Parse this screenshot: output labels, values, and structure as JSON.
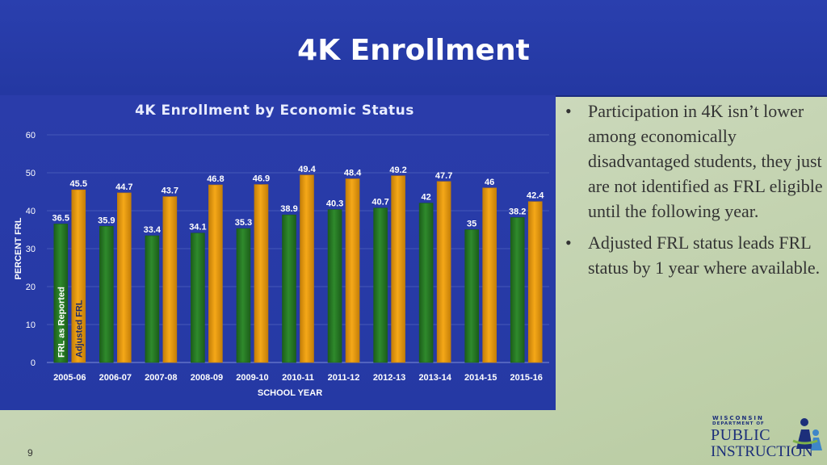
{
  "slide": {
    "title": "4K Enrollment",
    "page_number": "9"
  },
  "bullets": [
    "Participation in 4K isn’t lower among economically disadvantaged students, they just are not identified as FRL eligible until the following year.",
    "Adjusted FRL status leads FRL status by 1 year where available."
  ],
  "logo": {
    "line1": "WISCONSIN",
    "line2": "DEPARTMENT OF",
    "line3": "PUBLIC",
    "line4": "INSTRUCTION"
  },
  "colors": {
    "frl_as_reported": "#2f8a2c",
    "adjusted_frl": "#f5a818",
    "background_panel": "#2539a4"
  },
  "chart_data": {
    "type": "bar",
    "title": "4K Enrollment by Economic Status",
    "xlabel": "SCHOOL YEAR",
    "ylabel": "PERCENT FRL",
    "ylim": [
      0,
      60
    ],
    "yticks": [
      0,
      10,
      20,
      30,
      40,
      50,
      60
    ],
    "grid": true,
    "categories": [
      "2005-06",
      "2006-07",
      "2007-08",
      "2008-09",
      "2009-10",
      "2010-11",
      "2011-12",
      "2012-13",
      "2013-14",
      "2014-15",
      "2015-16"
    ],
    "series": [
      {
        "name": "FRL as Reported",
        "values": [
          36.5,
          35.9,
          33.4,
          34.1,
          35.3,
          38.9,
          40.3,
          40.7,
          42,
          35,
          38.2
        ]
      },
      {
        "name": "Adjusted FRL",
        "values": [
          45.5,
          44.7,
          43.7,
          46.8,
          46.9,
          49.4,
          48.4,
          49.2,
          47.7,
          46,
          42.4
        ]
      }
    ]
  }
}
